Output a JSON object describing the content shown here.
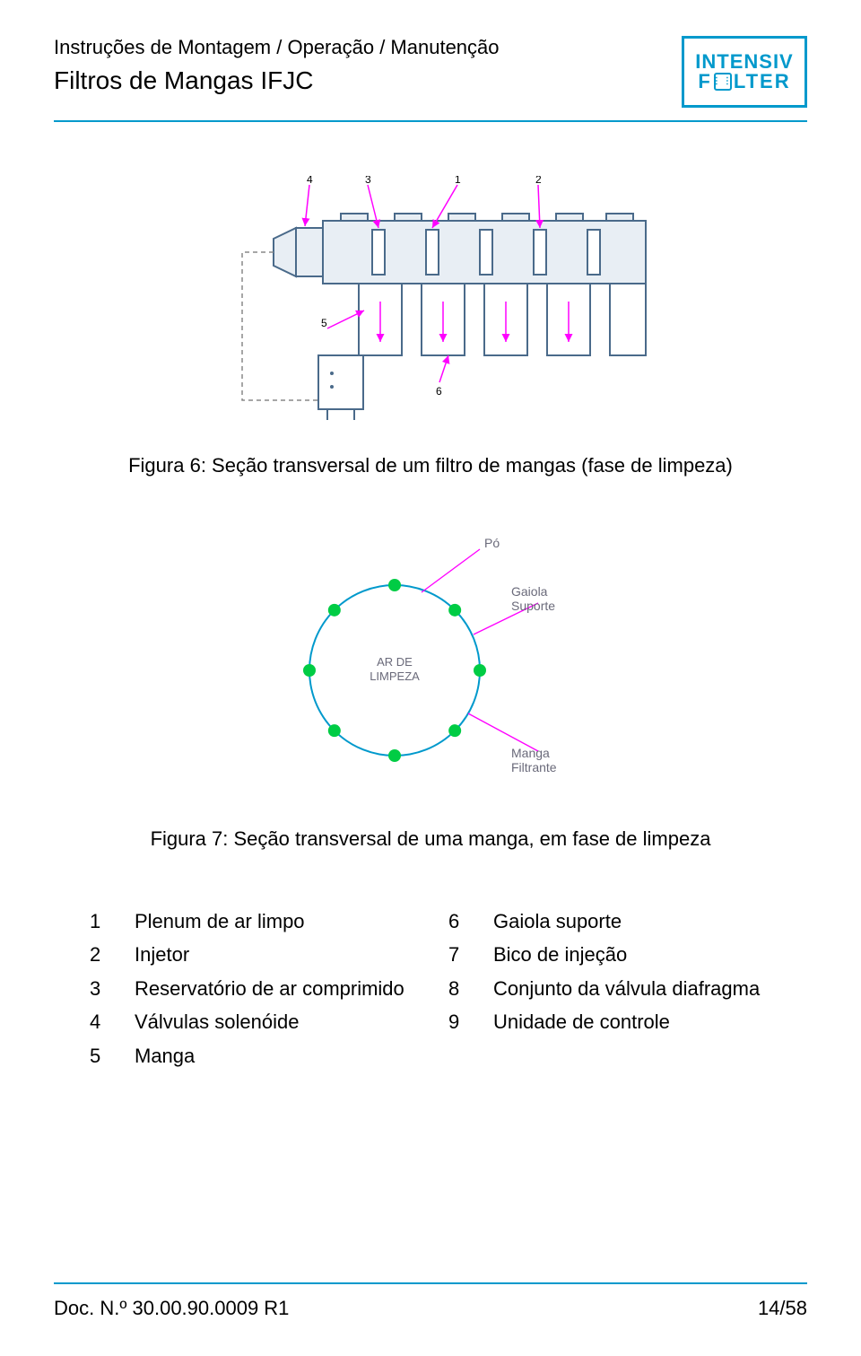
{
  "header": {
    "line1": "Instruções de Montagem / Operação / Manutenção",
    "line2": "Filtros de Mangas IFJC",
    "logo_top": "INTENSIV",
    "logo_bot": "FILTER",
    "accent_color": "#0099cc"
  },
  "figure6": {
    "caption": "Figura 6: Seção transversal de um filtro de mangas (fase de limpeza)",
    "callouts": [
      "1",
      "2",
      "3",
      "4",
      "5",
      "6"
    ],
    "colors": {
      "outline": "#4a6a8a",
      "arrow": "#ff00ff",
      "dash": "#888888",
      "fill_light": "#e8eef4"
    }
  },
  "figure7": {
    "caption": "Figura 7: Seção transversal de uma manga, em fase de limpeza",
    "center_label_top": "AR DE",
    "center_label_bot": "LIMPEZA",
    "labels": {
      "top": "Pó",
      "right_top1": "Gaiola",
      "right_top2": "Suporte",
      "right_bot1": "Manga",
      "right_bot2": "Filtrante"
    },
    "colors": {
      "circle": "#0099cc",
      "dot": "#00cc44",
      "leader": "#ff00ff",
      "text": "#6a6a7a"
    },
    "dot_count": 8
  },
  "legend": {
    "left": [
      {
        "n": "1",
        "t": "Plenum de ar limpo"
      },
      {
        "n": "2",
        "t": "Injetor"
      },
      {
        "n": "3",
        "t": "Reservatório de ar comprimido"
      },
      {
        "n": "4",
        "t": "Válvulas solenóide"
      },
      {
        "n": "5",
        "t": "Manga"
      }
    ],
    "right": [
      {
        "n": "6",
        "t": "Gaiola suporte"
      },
      {
        "n": "7",
        "t": "Bico de injeção"
      },
      {
        "n": "8",
        "t": "Conjunto da válvula diafragma"
      },
      {
        "n": "9",
        "t": "Unidade de controle"
      }
    ]
  },
  "footer": {
    "left": "Doc. N.º 30.00.90.0009 R1",
    "right": "14/58"
  }
}
